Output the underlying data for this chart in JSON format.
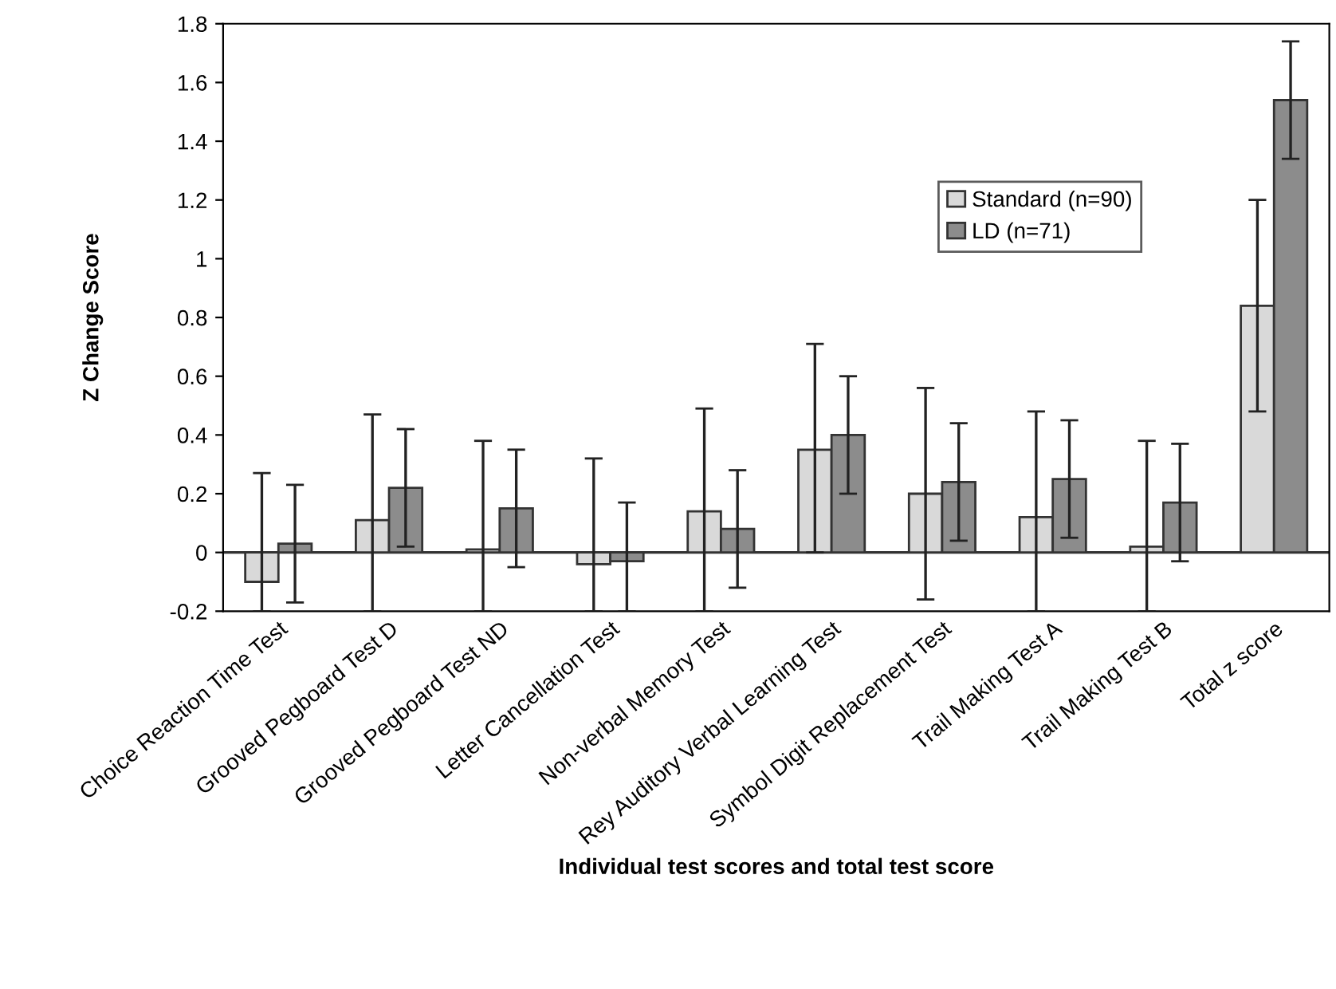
{
  "chart_data": {
    "type": "bar",
    "xlabel": "Individual test scores and total test score",
    "ylabel": "Z Change Score",
    "categories": [
      "Choice Reaction Time Test",
      "Grooved Pegboard Test D",
      "Grooved Pegboard Test ND",
      "Letter Cancellation Test",
      "Non-verbal Memory Test",
      "Rey Auditory Verbal Learning Test",
      "Symbol Digit Replacement Test",
      "Trail Making Test A",
      "Trail Making Test B",
      "Total z score"
    ],
    "series": [
      {
        "name": "Standard (n=90)",
        "color": "#d9d9d9",
        "values": [
          -0.1,
          0.11,
          0.01,
          -0.04,
          0.14,
          0.35,
          0.2,
          0.12,
          0.02,
          0.84
        ],
        "errors": [
          [
            -0.2,
            0.27
          ],
          [
            -0.2,
            0.47
          ],
          [
            -0.2,
            0.38
          ],
          [
            -0.2,
            0.32
          ],
          [
            -0.2,
            0.49
          ],
          [
            0,
            0.71
          ],
          [
            -0.16,
            0.56
          ],
          [
            -0.2,
            0.48
          ],
          [
            -0.2,
            0.38
          ],
          [
            0.48,
            1.2
          ]
        ]
      },
      {
        "name": "LD (n=71)",
        "color": "#8c8c8c",
        "values": [
          0.03,
          0.22,
          0.15,
          -0.03,
          0.08,
          0.4,
          0.24,
          0.25,
          0.17,
          1.54
        ],
        "errors": [
          [
            -0.17,
            0.23
          ],
          [
            0.02,
            0.42
          ],
          [
            -0.05,
            0.35
          ],
          [
            -0.2,
            0.17
          ],
          [
            -0.12,
            0.28
          ],
          [
            0.2,
            0.6
          ],
          [
            0.04,
            0.44
          ],
          [
            0.05,
            0.45
          ],
          [
            -0.03,
            0.37
          ],
          [
            1.34,
            1.74
          ]
        ]
      }
    ],
    "ylim": [
      -0.2,
      1.8
    ],
    "yticks": [
      -0.2,
      0,
      0.2,
      0.4,
      0.6,
      0.8,
      1,
      1.2,
      1.4,
      1.6,
      1.8
    ],
    "ref_lines": [
      {
        "axis": "y",
        "value": 0,
        "color": "#333333"
      }
    ],
    "legend": "top right",
    "grid": false
  }
}
